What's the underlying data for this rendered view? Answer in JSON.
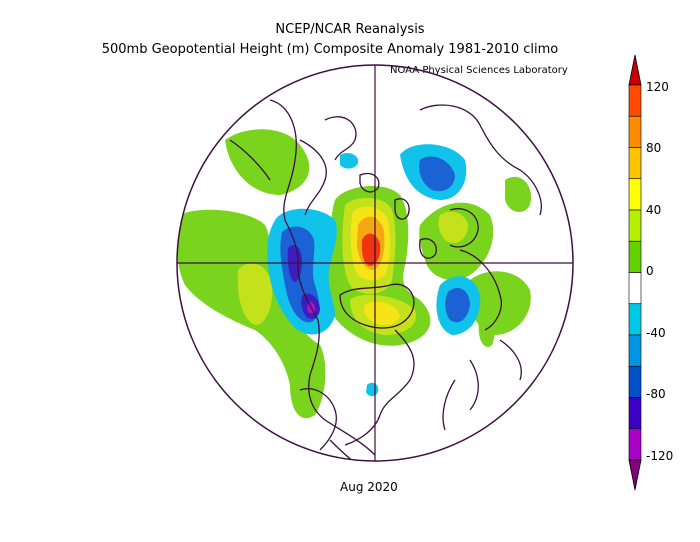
{
  "header": {
    "line1": "NCEP/NCAR Reanalysis",
    "line2": "500mb Geopotential Height (m) Composite Anomaly 1981-2010 climo",
    "credit": "NOAA Physical Sciences Laboratory"
  },
  "footer": {
    "date_label": "Aug 2020"
  },
  "colorbar": {
    "labels": [
      "120",
      "80",
      "40",
      "0",
      "-40",
      "-80",
      "-120"
    ],
    "colors": [
      "#c80000",
      "#ff4b00",
      "#ff8c00",
      "#ffc400",
      "#ffff00",
      "#b4f000",
      "#64d200",
      "#ffffff",
      "#00c8e6",
      "#0096e6",
      "#0050c8",
      "#3c00c8",
      "#aa00c8",
      "#82007d"
    ]
  },
  "anomaly_colors": {
    "pos40": "#7ad31c",
    "pos60": "#c4e21b",
    "pos80": "#f5e418",
    "pos100": "#f7a614",
    "pos120": "#ef3510",
    "neg40": "#11c3ea",
    "neg60": "#1b63d4",
    "neg80": "#3c1ec0",
    "neg100": "#a714c6"
  }
}
